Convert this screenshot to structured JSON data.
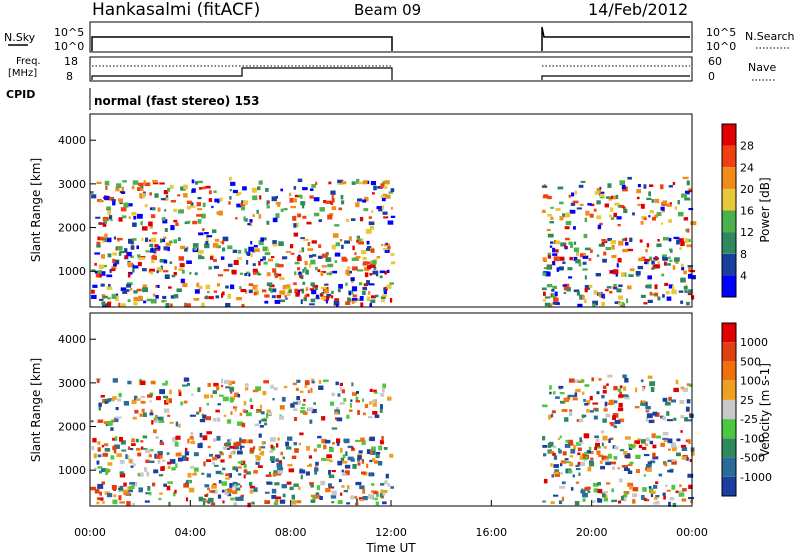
{
  "header": {
    "station": "Hankasalmi (fitACF)",
    "beam": "Beam 09",
    "date": "14/Feb/2012"
  },
  "top_panels": {
    "nsky_label": "N.Sky",
    "nsearch_label": "N.Search",
    "freq_label_1": "Freq.",
    "freq_label_2": "[MHz]",
    "nave_label": "Nave",
    "cpid_label": "CPID",
    "cpid_value": "normal (fast stereo) 153",
    "nsky_ticks": [
      "10^5",
      "10^0"
    ],
    "nsearch_ticks": [
      "10^5",
      "10^0"
    ],
    "freq_ticks": [
      "18",
      "8"
    ],
    "nave_ticks": [
      "60",
      "0"
    ]
  },
  "chart_data": [
    {
      "type": "heatmap",
      "name_ref": "power",
      "ylabel": "Slant Range [km]",
      "xlabel": "",
      "x_range_hours": [
        0,
        24
      ],
      "ylim": [
        180,
        4600
      ],
      "y_ticks": [
        "4000",
        "3000",
        "2000",
        "1000"
      ],
      "colorbar_label": "Power [dB]",
      "colorbar_ticks": [
        "28",
        "24",
        "20",
        "16",
        "12",
        "8",
        "4"
      ],
      "colors": [
        "#0000ff",
        "#1a3fa0",
        "#2e8a5c",
        "#4cb04c",
        "#e8c838",
        "#f08c18",
        "#f04010",
        "#e00000"
      ],
      "data_gaps": [
        [
          12,
          18
        ]
      ]
    },
    {
      "type": "heatmap",
      "name_ref": "velocity",
      "ylabel": "Slant Range [km]",
      "xlabel": "Time UT",
      "x_range_hours": [
        0,
        24
      ],
      "ylim": [
        180,
        4600
      ],
      "y_ticks": [
        "4000",
        "3000",
        "2000",
        "1000"
      ],
      "x_ticks": [
        "00:00",
        "04:00",
        "08:00",
        "12:00",
        "16:00",
        "20:00",
        "00:00"
      ],
      "colorbar_label": "Velocity [m s-1]",
      "colorbar_ticks": [
        "1000",
        "500",
        "100",
        "25",
        "-25",
        "-100",
        "-500",
        "-1000"
      ],
      "colors": [
        "#1a3fa0",
        "#2a6b9a",
        "#2e8a5c",
        "#4cc840",
        "#c8c8c8",
        "#f0a020",
        "#f07010",
        "#e04010",
        "#e00000"
      ],
      "data_gaps": [
        [
          12,
          18
        ]
      ]
    }
  ]
}
